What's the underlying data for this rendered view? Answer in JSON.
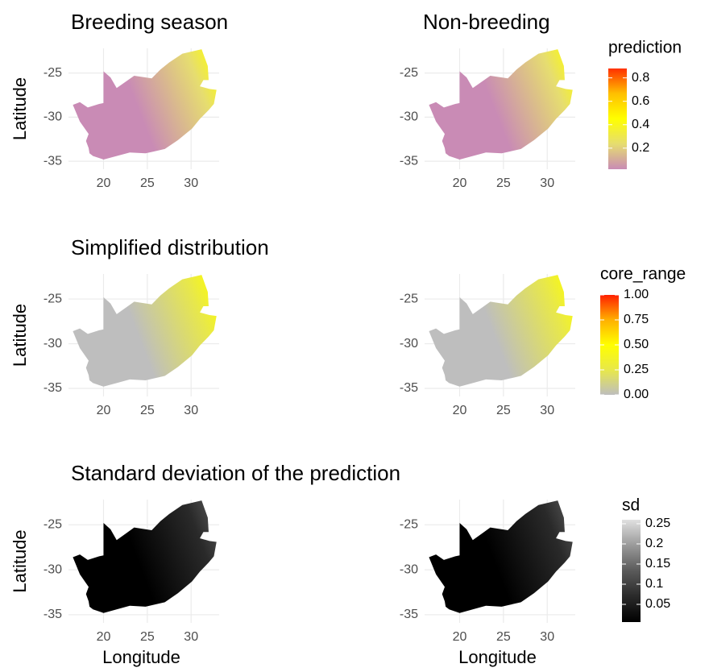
{
  "chart_data": [
    {
      "type": "map",
      "title": "Breeding season",
      "ylabel": "Latitude",
      "xlim": [
        16,
        33.2
      ],
      "ylim": [
        -35.9,
        -22.2
      ],
      "xticks": [
        20,
        25,
        30
      ],
      "yticks": [
        -25,
        -30,
        -35
      ],
      "grid": true,
      "colors": [
        "#c98bb5",
        "#e6dd70",
        "#ffff00",
        "#ffc000",
        "#ff3000"
      ]
    },
    {
      "type": "map",
      "title": "Non-breeding",
      "xlim": [
        16,
        33.2
      ],
      "ylim": [
        -35.9,
        -22.2
      ],
      "xticks": [
        20,
        25,
        30
      ],
      "yticks": [
        -25,
        -30,
        -35
      ],
      "grid": true,
      "colors": [
        "#c98bb5",
        "#e6dd70",
        "#ffff00",
        "#ffc000",
        "#ff3000"
      ],
      "legend": {
        "title": "prediction",
        "lim": [
          0.02,
          0.88
        ],
        "ticks": [
          0.2,
          0.4,
          0.6,
          0.8
        ],
        "colors": [
          "#c98bb5",
          "#e6dd70",
          "#ffff00",
          "#ffc000",
          "#ff3000"
        ]
      }
    },
    {
      "type": "map",
      "title": "Simplified distribution",
      "ylabel": "Latitude",
      "xlim": [
        16,
        33.2
      ],
      "ylim": [
        -35.9,
        -22.2
      ],
      "xticks": [
        20,
        25,
        30
      ],
      "yticks": [
        -25,
        -30,
        -35
      ],
      "grid": true,
      "colors": [
        "#bebebe",
        "#e8e84a",
        "#ffff00",
        "#ffb000",
        "#ff2000"
      ]
    },
    {
      "type": "map",
      "xlim": [
        16,
        33.2
      ],
      "ylim": [
        -35.9,
        -22.2
      ],
      "xticks": [
        20,
        25,
        30
      ],
      "yticks": [
        -25,
        -30,
        -35
      ],
      "grid": true,
      "colors": [
        "#bebebe",
        "#e8e84a",
        "#ffff00",
        "#ffb000",
        "#ff2000"
      ],
      "legend": {
        "title": "core_range",
        "lim": [
          0,
          1
        ],
        "ticks": [
          {
            "value": 0,
            "label": "0.00"
          },
          {
            "value": 0.25,
            "label": "0.25"
          },
          {
            "value": 0.5,
            "label": "0.50"
          },
          {
            "value": 0.75,
            "label": "0.75"
          },
          {
            "value": 1,
            "label": "1.00"
          }
        ],
        "colors": [
          "#bebebe",
          "#e8e84a",
          "#ffff00",
          "#ffb000",
          "#ff2000"
        ]
      }
    },
    {
      "type": "map",
      "title": "Standard deviation of the prediction",
      "ylabel": "Latitude",
      "xlabel": "Longitude",
      "xlim": [
        16,
        33.2
      ],
      "ylim": [
        -35.9,
        -22.2
      ],
      "xticks": [
        20,
        25,
        30
      ],
      "yticks": [
        -25,
        -30,
        -35
      ],
      "grid": true,
      "colors": [
        "#000000",
        "#2a2a2a",
        "#5a5a5a",
        "#9a9a9a",
        "#e0e0e0"
      ]
    },
    {
      "type": "map",
      "xlabel": "Longitude",
      "xlim": [
        16,
        33.2
      ],
      "ylim": [
        -35.9,
        -22.2
      ],
      "xticks": [
        20,
        25,
        30
      ],
      "yticks": [
        -25,
        -30,
        -35
      ],
      "grid": true,
      "colors": [
        "#000000",
        "#2a2a2a",
        "#5a5a5a",
        "#9a9a9a",
        "#e0e0e0"
      ],
      "legend": {
        "title": "sd",
        "lim": [
          0.006,
          0.26
        ],
        "ticks": [
          0.05,
          0.1,
          0.15,
          0.2,
          0.25
        ],
        "colors": [
          "#000000",
          "#2a2a2a",
          "#5a5a5a",
          "#9a9a9a",
          "#e0e0e0"
        ]
      }
    }
  ]
}
